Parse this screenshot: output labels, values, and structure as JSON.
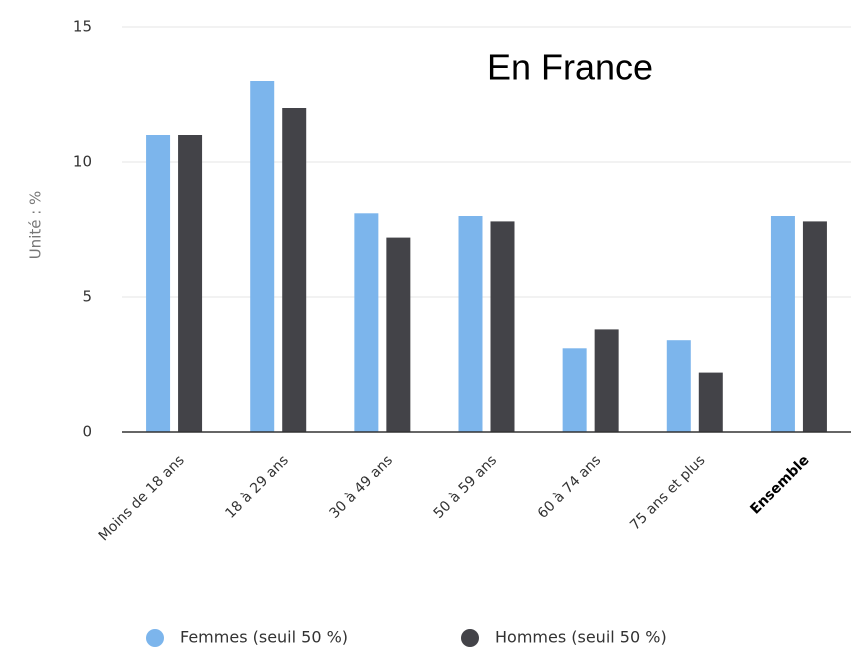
{
  "chart_data": {
    "type": "bar",
    "title": "En France",
    "y_label": "Unité : %",
    "categories": [
      "Moins de 18 ans",
      "18 à 29 ans",
      "30 à 49 ans",
      "50 à 59 ans",
      "60 à 74 ans",
      "75 ans et plus",
      "Ensemble"
    ],
    "series": [
      {
        "name": "Femmes (seuil 50 %)",
        "color": "#7cb5ec",
        "values": [
          11.0,
          13.0,
          8.1,
          8.0,
          3.1,
          3.4,
          8.0
        ]
      },
      {
        "name": "Hommes (seuil 50 %)",
        "color": "#434348",
        "values": [
          11.0,
          12.0,
          7.2,
          7.8,
          3.8,
          2.2,
          7.8
        ]
      }
    ],
    "ylim": [
      0,
      15
    ],
    "yticks": [
      0,
      5,
      10,
      15
    ],
    "grid": true
  }
}
